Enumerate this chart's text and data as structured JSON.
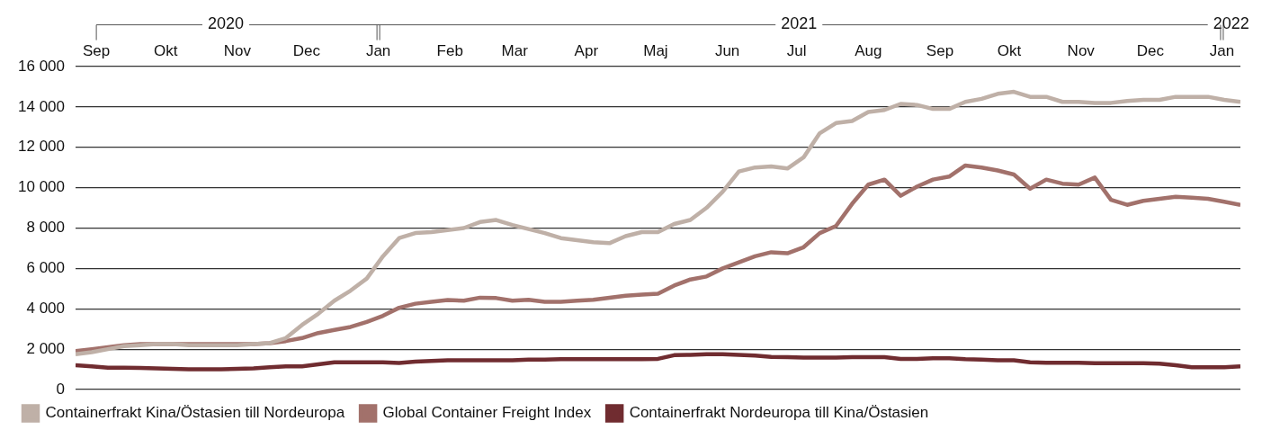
{
  "chart_data": {
    "type": "line",
    "x": [
      "2020-08-23",
      "2020-08-30",
      "2020-09-06",
      "2020-09-13",
      "2020-09-20",
      "2020-09-27",
      "2020-10-04",
      "2020-10-11",
      "2020-10-18",
      "2020-10-25",
      "2020-11-01",
      "2020-11-08",
      "2020-11-15",
      "2020-11-22",
      "2020-11-29",
      "2020-12-06",
      "2020-12-13",
      "2020-12-20",
      "2020-12-27",
      "2021-01-03",
      "2021-01-10",
      "2021-01-17",
      "2021-01-24",
      "2021-01-31",
      "2021-02-07",
      "2021-02-14",
      "2021-02-21",
      "2021-02-28",
      "2021-03-07",
      "2021-03-14",
      "2021-03-21",
      "2021-03-28",
      "2021-04-04",
      "2021-04-11",
      "2021-04-18",
      "2021-04-25",
      "2021-05-02",
      "2021-05-09",
      "2021-05-16",
      "2021-05-23",
      "2021-05-30",
      "2021-06-06",
      "2021-06-13",
      "2021-06-20",
      "2021-06-27",
      "2021-07-04",
      "2021-07-11",
      "2021-07-18",
      "2021-07-25",
      "2021-08-01",
      "2021-08-08",
      "2021-08-15",
      "2021-08-22",
      "2021-08-29",
      "2021-09-05",
      "2021-09-12",
      "2021-09-19",
      "2021-09-26",
      "2021-10-03",
      "2021-10-10",
      "2021-10-17",
      "2021-10-24",
      "2021-10-31",
      "2021-11-07",
      "2021-11-14",
      "2021-11-21",
      "2021-11-28",
      "2021-12-05",
      "2021-12-12",
      "2021-12-19",
      "2021-12-26",
      "2022-01-02",
      "2022-01-09"
    ],
    "series": [
      {
        "name": "Containerfrakt Kina/Östasien till Nordeuropa",
        "color": "#bfb0a7",
        "values": [
          1750,
          1850,
          2000,
          2150,
          2200,
          2250,
          2250,
          2200,
          2200,
          2200,
          2200,
          2250,
          2300,
          2550,
          3200,
          3750,
          4400,
          4900,
          5500,
          6600,
          7500,
          7750,
          7800,
          7900,
          8000,
          8300,
          8400,
          8150,
          7950,
          7750,
          7500,
          7400,
          7300,
          7250,
          7600,
          7800,
          7800,
          8200,
          8400,
          9000,
          9800,
          10800,
          11000,
          11050,
          10950,
          11500,
          12700,
          13200,
          13300,
          13750,
          13850,
          14150,
          14100,
          13900,
          13900,
          14250,
          14400,
          14650,
          14750,
          14500,
          14500,
          14250,
          14250,
          14200,
          14200,
          14300,
          14350,
          14350,
          14500,
          14500,
          14500,
          14350,
          14250
        ]
      },
      {
        "name": "Global Container Freight Index",
        "color": "#a2716b",
        "values": [
          1900,
          2000,
          2100,
          2200,
          2250,
          2250,
          2250,
          2250,
          2250,
          2250,
          2250,
          2250,
          2300,
          2400,
          2550,
          2800,
          2950,
          3100,
          3350,
          3650,
          4050,
          4250,
          4350,
          4430,
          4400,
          4550,
          4530,
          4400,
          4450,
          4350,
          4350,
          4400,
          4450,
          4550,
          4650,
          4700,
          4750,
          5150,
          5450,
          5600,
          6000,
          6300,
          6600,
          6800,
          6750,
          7050,
          7750,
          8100,
          9200,
          10150,
          10400,
          9600,
          10050,
          10400,
          10550,
          11100,
          11000,
          10850,
          10650,
          9950,
          10400,
          10200,
          10150,
          10500,
          9400,
          9150,
          9350,
          9450,
          9550,
          9500,
          9450,
          9300,
          9150
        ]
      },
      {
        "name": "Containerfrakt Nordeuropa till Kina/Östasien",
        "color": "#702c30",
        "values": [
          1200,
          1150,
          1080,
          1080,
          1070,
          1050,
          1030,
          1000,
          1000,
          1000,
          1020,
          1050,
          1100,
          1150,
          1150,
          1250,
          1350,
          1350,
          1350,
          1350,
          1320,
          1380,
          1420,
          1450,
          1450,
          1450,
          1450,
          1450,
          1480,
          1480,
          1500,
          1500,
          1500,
          1500,
          1500,
          1500,
          1520,
          1700,
          1720,
          1750,
          1750,
          1720,
          1680,
          1620,
          1600,
          1580,
          1580,
          1580,
          1600,
          1600,
          1600,
          1520,
          1520,
          1550,
          1550,
          1500,
          1480,
          1450,
          1450,
          1350,
          1330,
          1330,
          1330,
          1300,
          1300,
          1300,
          1300,
          1280,
          1200,
          1100,
          1100,
          1100,
          1150
        ]
      }
    ],
    "xlim": [
      "2020-08-23",
      "2022-01-09"
    ],
    "xticks": [
      {
        "value": "2020-09-01",
        "label": "Sep"
      },
      {
        "value": "2020-10-01",
        "label": "Okt"
      },
      {
        "value": "2020-11-01",
        "label": "Nov"
      },
      {
        "value": "2020-12-01",
        "label": "Dec"
      },
      {
        "value": "2021-01-01",
        "label": "Jan"
      },
      {
        "value": "2021-02-01",
        "label": "Feb"
      },
      {
        "value": "2021-03-01",
        "label": "Mar"
      },
      {
        "value": "2021-04-01",
        "label": "Apr"
      },
      {
        "value": "2021-05-01",
        "label": "Maj"
      },
      {
        "value": "2021-06-01",
        "label": "Jun"
      },
      {
        "value": "2021-07-01",
        "label": "Jul"
      },
      {
        "value": "2021-08-01",
        "label": "Aug"
      },
      {
        "value": "2021-09-01",
        "label": "Sep"
      },
      {
        "value": "2021-10-01",
        "label": "Okt"
      },
      {
        "value": "2021-11-01",
        "label": "Nov"
      },
      {
        "value": "2021-12-01",
        "label": "Dec"
      },
      {
        "value": "2022-01-01",
        "label": "Jan"
      }
    ],
    "x2lim": [
      "2020-08-23",
      "2022-01-09"
    ],
    "x2ticks": [
      {
        "value": "2020-10-27",
        "label": "2020"
      },
      {
        "value": "2021-07-02",
        "label": "2021"
      },
      {
        "value": "2022-01-05",
        "label": "2022"
      }
    ],
    "ylim": [
      0,
      16000
    ],
    "yticks": [
      0,
      {
        "value": 2000,
        "label": "2 000"
      },
      {
        "value": 4000,
        "label": "4 000"
      },
      {
        "value": 6000,
        "label": "6 000"
      },
      {
        "value": 8000,
        "label": "8 000"
      },
      {
        "value": 10000,
        "label": "10 000"
      },
      {
        "value": 12000,
        "label": "12 000"
      },
      {
        "value": 14000,
        "label": "14 000"
      },
      {
        "value": 16000,
        "label": "16 000"
      }
    ],
    "grid": "y",
    "legend": "bottom",
    "marker": "none",
    "line_style": "solid"
  }
}
